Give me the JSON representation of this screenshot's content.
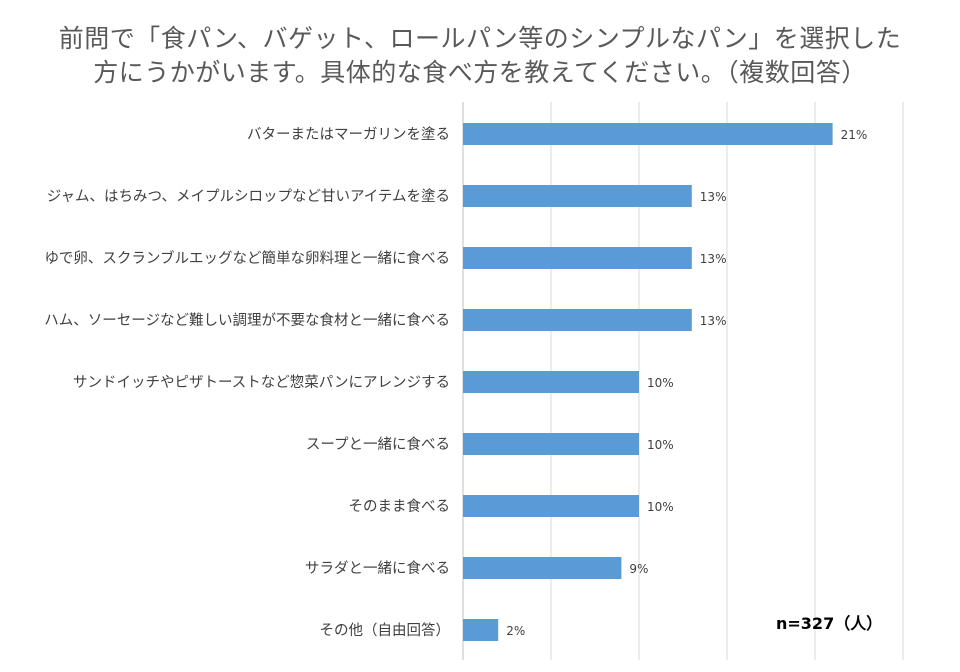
{
  "chart_data": {
    "type": "bar",
    "orientation": "horizontal",
    "title_line1": "前問で「食パン、バゲット、ロールパン等のシンプルなパン」を選択した",
    "title_line2": "方にうかがいます。具体的な食べ方を教えてください。（複数回答）",
    "categories": [
      "バターまたはマーガリンを塗る",
      "ジャム、はちみつ、メイプルシロップなど甘いアイテムを塗る",
      "ゆで卵、スクランブルエッグなど簡単な卵料理と一緒に食べる",
      "ハム、ソーセージなど難しい調理が不要な食材と一緒に食べる",
      "サンドイッチやピザトーストなど惣菜パンにアレンジする",
      "スープと一緒に食べる",
      "そのまま食べる",
      "サラダと一緒に食べる",
      "その他（自由回答）"
    ],
    "values": [
      21,
      13,
      13,
      13,
      10,
      10,
      10,
      9,
      2
    ],
    "value_labels": [
      "21%",
      "13%",
      "13%",
      "13%",
      "10%",
      "10%",
      "10%",
      "9%",
      "2%"
    ],
    "bar_color": "#5b9bd5",
    "grid": true,
    "sample_note": "n=327（人）"
  }
}
